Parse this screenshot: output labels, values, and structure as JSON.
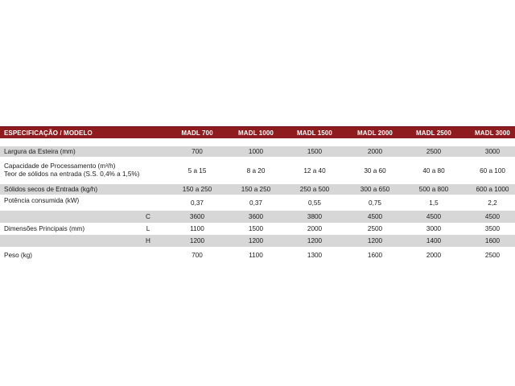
{
  "header": {
    "spec_label": "ESPECIFICAÇÃO / MODELO",
    "models": [
      "MADL 700",
      "MADL 1000",
      "MADL 1500",
      "MADL 2000",
      "MADL 2500",
      "MADL 3000"
    ]
  },
  "rows": {
    "largura": {
      "label": "Largura da Esteira (mm)",
      "values": [
        "700",
        "1000",
        "1500",
        "2000",
        "2500",
        "3000"
      ]
    },
    "capacidade": {
      "label_line1": "Capacidade de Processamento (m³/h)",
      "label_line2": "Teor de sólidos na entrada (S.S. 0,4% a 1,5%)",
      "values": [
        "5 a 15",
        "8 a 20",
        "12 a 40",
        "30 a 60",
        "40 a 80",
        "60 a 100"
      ]
    },
    "solidos": {
      "label": "Sólidos secos de Entrada (kg/h)",
      "values": [
        "150 a 250",
        "150 a 250",
        "250 a 500",
        "300 a 650",
        "500 a 800",
        "600 a 1000"
      ]
    },
    "potencia": {
      "label": "Potência consumida (kW)",
      "values": [
        "0,37",
        "0,37",
        "0,55",
        "0,75",
        "1,5",
        "2,2"
      ]
    },
    "dimensoes": {
      "label": "Dimensões Principais (mm)",
      "c": {
        "letter": "C",
        "values": [
          "3600",
          "3600",
          "3800",
          "4500",
          "4500",
          "4500"
        ]
      },
      "l": {
        "letter": "L",
        "values": [
          "1100",
          "1500",
          "2000",
          "2500",
          "3000",
          "3500"
        ]
      },
      "h": {
        "letter": "H",
        "values": [
          "1200",
          "1200",
          "1200",
          "1200",
          "1400",
          "1600"
        ]
      }
    },
    "peso": {
      "label": "Peso (kg)",
      "values": [
        "700",
        "1100",
        "1300",
        "1600",
        "2000",
        "2500"
      ]
    }
  },
  "colors": {
    "header_bg": "#8e1b1d",
    "stripe": "#d7d7d7"
  }
}
